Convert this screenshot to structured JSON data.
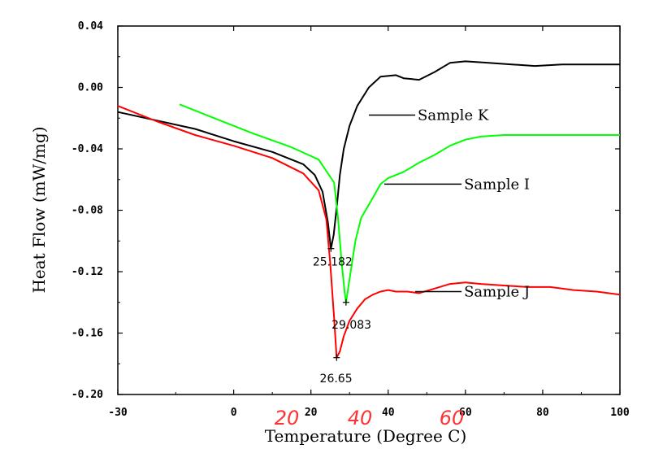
{
  "chart_data": {
    "type": "line",
    "xlabel": "Temperature (Degree C)",
    "ylabel": "Heat Flow (mW/mg)",
    "xlim": [
      -30,
      100
    ],
    "ylim": [
      -0.2,
      0.04
    ],
    "x_ticks": [
      -30,
      0,
      20,
      40,
      60,
      80,
      100
    ],
    "x_tick_labels": [
      "-30",
      "0",
      "20",
      "40",
      "60",
      "80",
      "100"
    ],
    "y_ticks": [
      0.04,
      0.0,
      -0.04,
      -0.08,
      -0.12,
      -0.16,
      -0.2
    ],
    "y_tick_labels": [
      "0.04",
      "0.00",
      "-0.04",
      "-0.08",
      "-0.12",
      "-0.16",
      "-0.20"
    ],
    "grid": false,
    "series": [
      {
        "name": "Sample K",
        "color": "#000000",
        "points": [
          [
            -30,
            -0.016
          ],
          [
            -10,
            -0.027
          ],
          [
            0,
            -0.035
          ],
          [
            10,
            -0.042
          ],
          [
            18,
            -0.05
          ],
          [
            21,
            -0.057
          ],
          [
            23,
            -0.068
          ],
          [
            24.4,
            -0.088
          ],
          [
            25.18,
            -0.105
          ],
          [
            25.9,
            -0.096
          ],
          [
            26.8,
            -0.075
          ],
          [
            27.5,
            -0.057
          ],
          [
            28.5,
            -0.04
          ],
          [
            30,
            -0.025
          ],
          [
            32,
            -0.012
          ],
          [
            35,
            0.0
          ],
          [
            38,
            0.007
          ],
          [
            42,
            0.008
          ],
          [
            44,
            0.006
          ],
          [
            48,
            0.005
          ],
          [
            52,
            0.01
          ],
          [
            56,
            0.016
          ],
          [
            60,
            0.017
          ],
          [
            66,
            0.016
          ],
          [
            72,
            0.015
          ],
          [
            78,
            0.014
          ],
          [
            85,
            0.015
          ],
          [
            92,
            0.015
          ],
          [
            100,
            0.015
          ]
        ]
      },
      {
        "name": "Sample I",
        "color": "#00ff00",
        "points": [
          [
            -14,
            -0.011
          ],
          [
            -5,
            -0.02
          ],
          [
            5,
            -0.03
          ],
          [
            15,
            -0.039
          ],
          [
            22,
            -0.047
          ],
          [
            26,
            -0.062
          ],
          [
            27,
            -0.085
          ],
          [
            28,
            -0.115
          ],
          [
            28.7,
            -0.133
          ],
          [
            29.08,
            -0.14
          ],
          [
            30,
            -0.125
          ],
          [
            31.5,
            -0.1
          ],
          [
            33,
            -0.085
          ],
          [
            36,
            -0.072
          ],
          [
            38,
            -0.063
          ],
          [
            40,
            -0.059
          ],
          [
            44,
            -0.055
          ],
          [
            48,
            -0.049
          ],
          [
            52,
            -0.044
          ],
          [
            56,
            -0.038
          ],
          [
            60,
            -0.034
          ],
          [
            64,
            -0.032
          ],
          [
            70,
            -0.031
          ],
          [
            80,
            -0.031
          ],
          [
            90,
            -0.031
          ],
          [
            100,
            -0.031
          ]
        ]
      },
      {
        "name": "Sample J",
        "color": "#ff0000",
        "points": [
          [
            -30,
            -0.012
          ],
          [
            -20,
            -0.022
          ],
          [
            -10,
            -0.031
          ],
          [
            0,
            -0.038
          ],
          [
            10,
            -0.046
          ],
          [
            18,
            -0.056
          ],
          [
            22,
            -0.067
          ],
          [
            24,
            -0.086
          ],
          [
            25,
            -0.115
          ],
          [
            26,
            -0.15
          ],
          [
            26.65,
            -0.176
          ],
          [
            27.5,
            -0.172
          ],
          [
            28.5,
            -0.162
          ],
          [
            30,
            -0.152
          ],
          [
            32,
            -0.144
          ],
          [
            34,
            -0.138
          ],
          [
            36,
            -0.135
          ],
          [
            38,
            -0.133
          ],
          [
            40,
            -0.132
          ],
          [
            42,
            -0.133
          ],
          [
            45,
            -0.133
          ],
          [
            48,
            -0.134
          ],
          [
            52,
            -0.131
          ],
          [
            56,
            -0.128
          ],
          [
            60,
            -0.127
          ],
          [
            64,
            -0.128
          ],
          [
            70,
            -0.129
          ],
          [
            76,
            -0.13
          ],
          [
            82,
            -0.13
          ],
          [
            88,
            -0.132
          ],
          [
            94,
            -0.133
          ],
          [
            100,
            -0.135
          ]
        ]
      }
    ],
    "series_labels": [
      {
        "text": "Sample K",
        "series": 0,
        "anchor": [
          35,
          -0.018
        ],
        "at": [
          47,
          -0.018
        ]
      },
      {
        "text": "Sample I",
        "series": 1,
        "anchor": [
          39,
          -0.063
        ],
        "at": [
          59,
          -0.063
        ]
      },
      {
        "text": "Sample J",
        "series": 2,
        "anchor": [
          47,
          -0.133
        ],
        "at": [
          59,
          -0.133
        ]
      }
    ],
    "peak_labels": [
      {
        "text": "25.182",
        "x": 25.18,
        "y": -0.105,
        "label_x": 25.6,
        "label_y": -0.116
      },
      {
        "text": "29.083",
        "x": 29.08,
        "y": -0.14,
        "label_x": 30.5,
        "label_y": -0.157
      },
      {
        "text": "26.65",
        "x": 26.65,
        "y": -0.176,
        "label_x": 26.5,
        "label_y": -0.192
      }
    ],
    "handwritten_labels": [
      "20",
      "40",
      "60"
    ]
  }
}
